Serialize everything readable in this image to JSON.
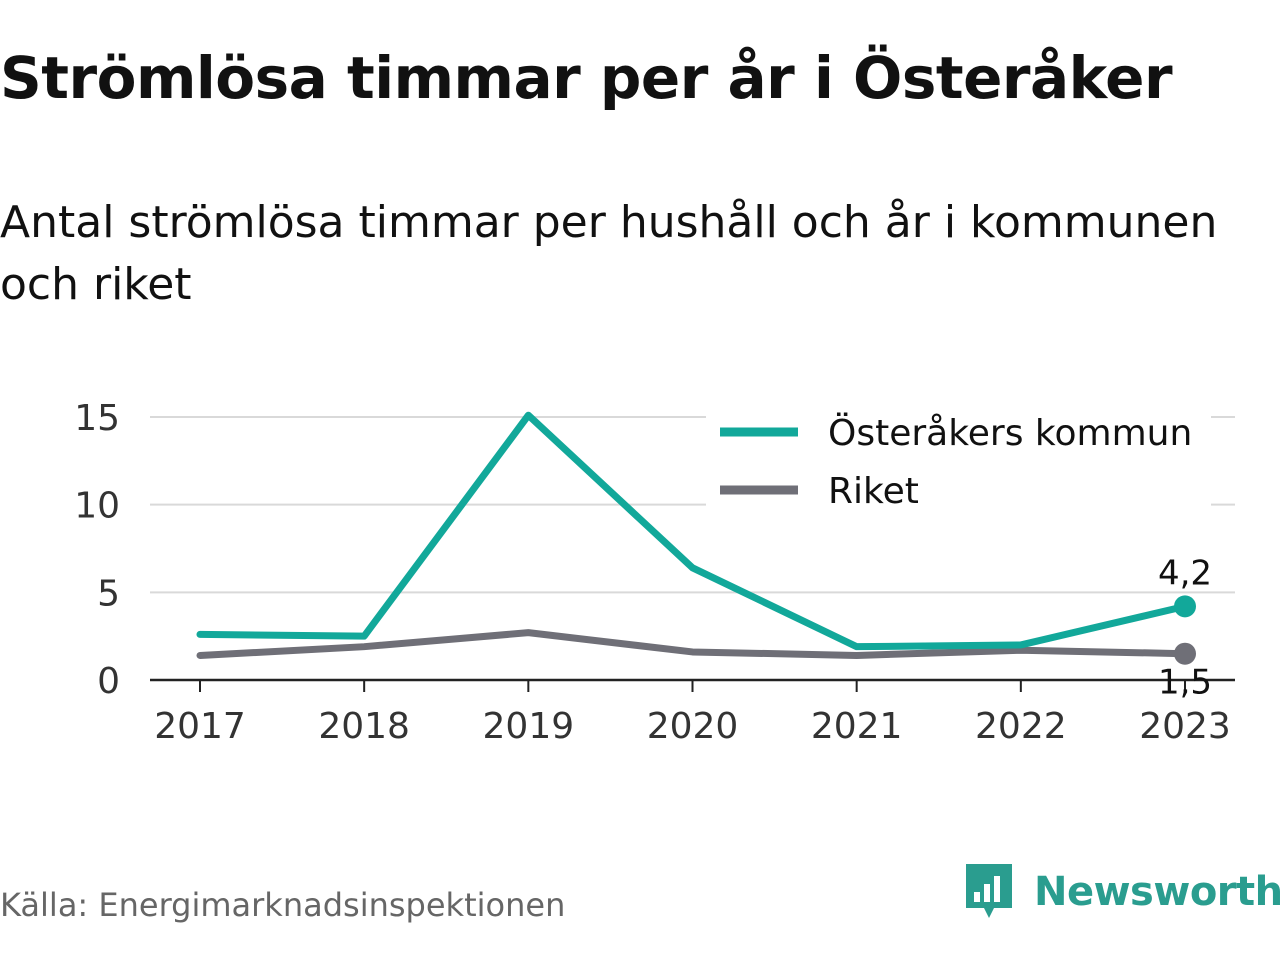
{
  "title": "Strömlösa timmar per år i Österåker",
  "subtitle": "Antal strömlösa timmar per hushåll och år i kommunen och riket",
  "source": "Källa: Energimarknadsinspektionen",
  "brand": {
    "name": "Newsworthy",
    "icon": "newsworthy-logo-icon",
    "color": "#2a9d8f"
  },
  "chart_data": {
    "type": "line",
    "title": "",
    "xlabel": "",
    "ylabel": "",
    "x": [
      "2017",
      "2018",
      "2019",
      "2020",
      "2021",
      "2022",
      "2023"
    ],
    "ylim": [
      0,
      15
    ],
    "yticks": [
      0,
      5,
      10,
      15
    ],
    "grid": true,
    "legend_position": "top-right",
    "series": [
      {
        "name": "Österåkers kommun",
        "color": "#12a89a",
        "values": [
          2.6,
          2.5,
          15.1,
          6.4,
          1.9,
          2.0,
          4.2
        ],
        "end_label": "4,2"
      },
      {
        "name": "Riket",
        "color": "#6f6f77",
        "values": [
          1.4,
          1.9,
          2.7,
          1.6,
          1.4,
          1.7,
          1.5
        ],
        "end_label": "1,5"
      }
    ]
  }
}
